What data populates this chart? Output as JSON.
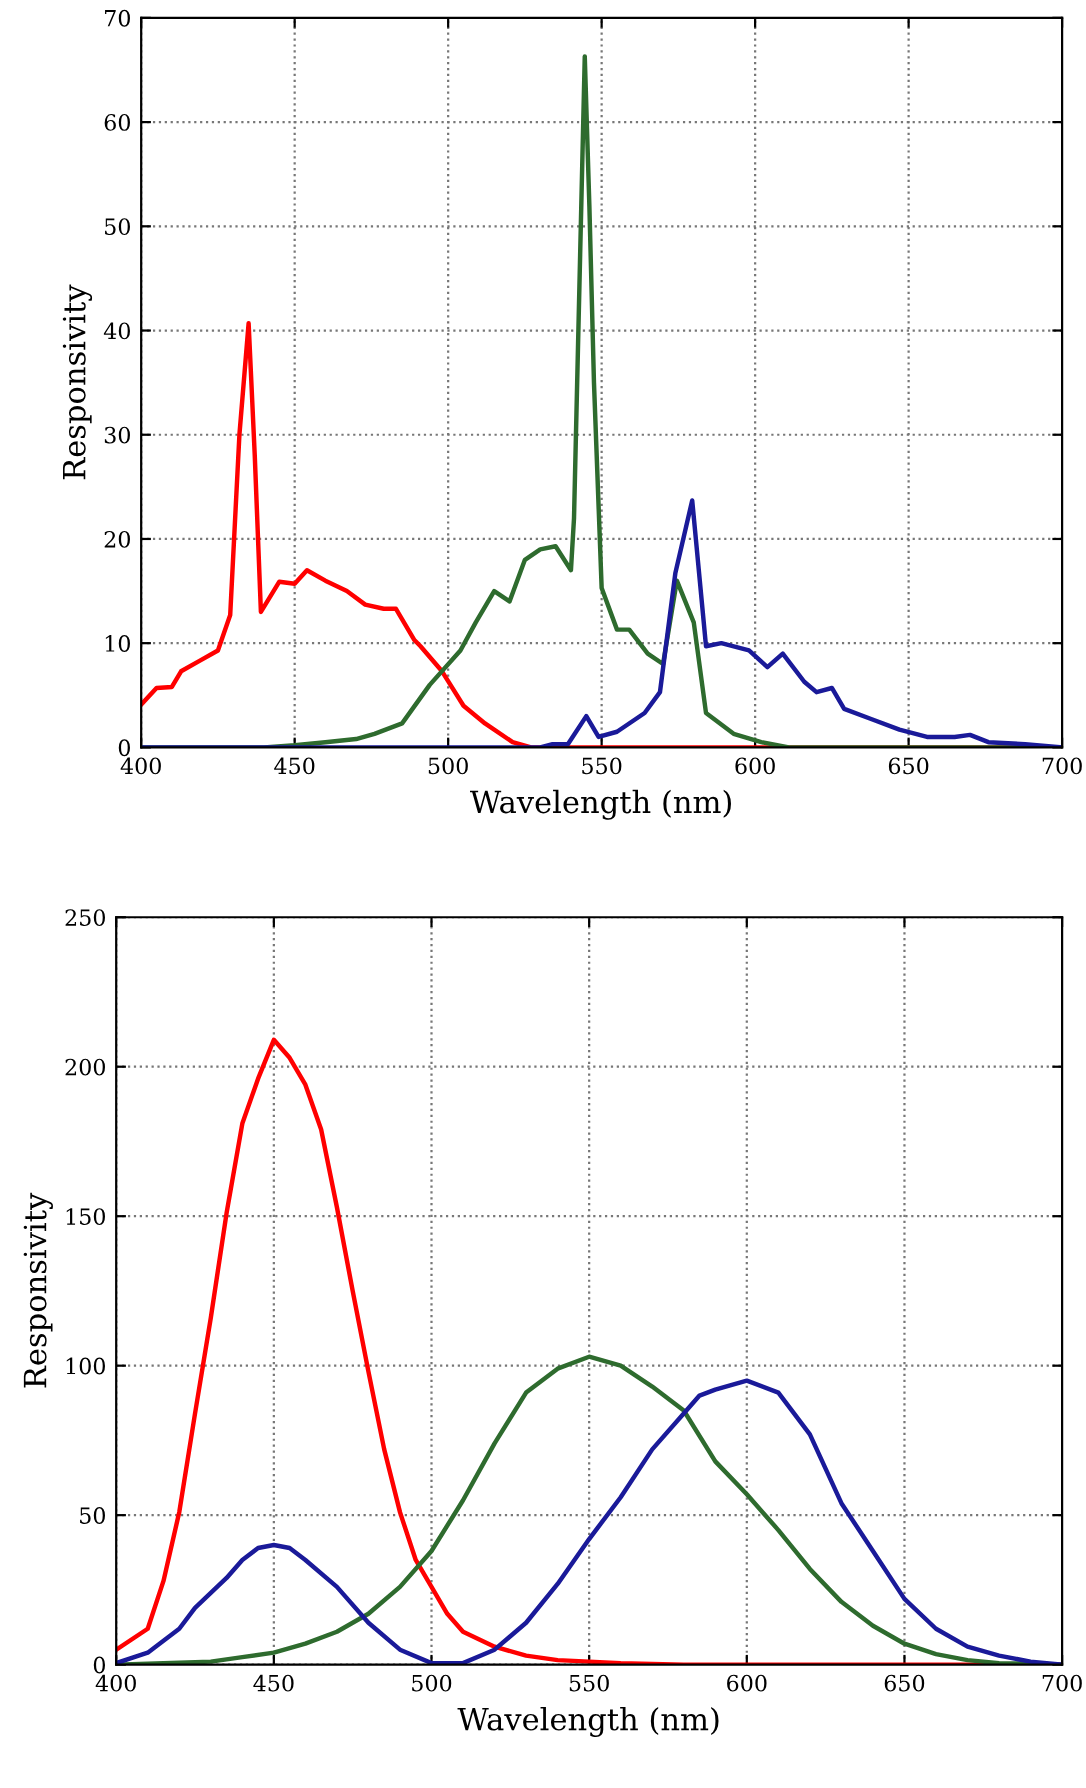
{
  "chart_data": [
    {
      "type": "line",
      "xlabel": "Wavelength (nm)",
      "ylabel": "Responsivity",
      "xlim": [
        400,
        700
      ],
      "ylim": [
        0,
        70
      ],
      "xticks": [
        400,
        450,
        500,
        550,
        600,
        650,
        700
      ],
      "yticks": [
        0,
        10,
        20,
        30,
        40,
        50,
        60,
        70
      ],
      "grid": true,
      "line_style": "solid",
      "marker": "none",
      "series": [
        {
          "color": "#ff0000",
          "x": [
            400,
            405,
            410,
            413,
            419,
            425,
            429,
            432,
            435,
            437,
            439,
            445,
            450,
            454,
            460,
            467,
            473,
            479,
            483,
            489,
            491,
            498,
            505,
            512,
            521,
            527,
            550,
            600,
            650,
            700
          ],
          "values": [
            4.1,
            5.7,
            5.8,
            7.3,
            8.3,
            9.3,
            12.7,
            30,
            40.7,
            28,
            13,
            15.9,
            15.7,
            17,
            16,
            15,
            13.7,
            13.3,
            13.3,
            10.3,
            9.7,
            7.3,
            4,
            2.3,
            0.5,
            0,
            0,
            0,
            0,
            0
          ]
        },
        {
          "color": "#2e6b2e",
          "x": [
            400,
            440,
            450,
            460,
            470,
            476,
            485,
            494,
            504,
            509,
            515,
            520,
            525,
            530,
            535,
            540,
            541,
            544.5,
            546,
            547.5,
            550,
            555,
            559,
            565,
            570,
            574.5,
            580,
            584,
            593,
            602,
            611,
            650,
            700
          ],
          "values": [
            0,
            0,
            0.2,
            0.5,
            0.8,
            1.3,
            2.3,
            6,
            9.3,
            12,
            15,
            14,
            18,
            19,
            19.3,
            17,
            22,
            66.3,
            52,
            35,
            15.3,
            11.3,
            11.3,
            9,
            8,
            16,
            12,
            3.3,
            1.3,
            0.5,
            0,
            0,
            0
          ]
        },
        {
          "color": "#1a1a99",
          "x": [
            400,
            500,
            530,
            534,
            539,
            545,
            549,
            555,
            564,
            569,
            574,
            579.5,
            584,
            589,
            598,
            604,
            609,
            616,
            620,
            625,
            629,
            638,
            647,
            656,
            665,
            670,
            676,
            688,
            700
          ],
          "values": [
            0,
            0,
            0,
            0.3,
            0.3,
            3,
            1,
            1.5,
            3.3,
            5.3,
            16.7,
            23.7,
            9.7,
            10,
            9.3,
            7.7,
            9,
            6.3,
            5.3,
            5.7,
            3.7,
            2.7,
            1.7,
            1,
            1,
            1.2,
            0.5,
            0.3,
            0
          ]
        }
      ]
    },
    {
      "type": "line",
      "xlabel": "Wavelength (nm)",
      "ylabel": "Responsivity",
      "xlim": [
        400,
        700
      ],
      "ylim": [
        0,
        250
      ],
      "xticks": [
        400,
        450,
        500,
        550,
        600,
        650,
        700
      ],
      "yticks": [
        0,
        50,
        100,
        150,
        200,
        250
      ],
      "grid": true,
      "line_style": "solid",
      "marker": "none",
      "series": [
        {
          "color": "#ff0000",
          "x": [
            400,
            410,
            415,
            420,
            425,
            430,
            435,
            440,
            445,
            450,
            455,
            460,
            465,
            470,
            475,
            480,
            485,
            490,
            495,
            500,
            505,
            510,
            520,
            530,
            540,
            550,
            560,
            580,
            700
          ],
          "values": [
            5,
            12,
            28,
            51,
            84,
            116,
            151,
            181,
            196,
            209,
            203,
            194,
            179,
            153,
            125,
            98,
            72,
            51,
            35,
            26,
            17,
            11,
            6,
            3,
            1.5,
            1,
            0.5,
            0,
            0
          ]
        },
        {
          "color": "#2e6b2e",
          "x": [
            400,
            430,
            440,
            450,
            460,
            470,
            480,
            490,
            500,
            510,
            520,
            530,
            540,
            550,
            560,
            570,
            580,
            590,
            600,
            610,
            620,
            630,
            640,
            650,
            660,
            670,
            680,
            700
          ],
          "values": [
            0,
            1,
            2.5,
            4,
            7,
            11,
            17,
            26,
            38,
            55,
            74,
            91,
            99,
            103,
            100,
            93,
            85,
            68,
            57,
            45,
            32,
            21,
            13,
            7,
            3.5,
            1.5,
            0.5,
            0
          ]
        },
        {
          "color": "#1a1a99",
          "x": [
            400,
            410,
            420,
            425,
            430,
            435,
            440,
            445,
            450,
            455,
            460,
            470,
            480,
            490,
            500,
            510,
            520,
            530,
            540,
            550,
            560,
            570,
            580,
            585,
            590,
            600,
            610,
            620,
            630,
            640,
            650,
            660,
            670,
            680,
            690,
            700
          ],
          "values": [
            0.5,
            4,
            12,
            19,
            24,
            29,
            35,
            39,
            40,
            39,
            35,
            26,
            14,
            5,
            0.5,
            0.5,
            5,
            14,
            27,
            42,
            56,
            72,
            84,
            90,
            92,
            95,
            91,
            77,
            54,
            38,
            22,
            12,
            6,
            3,
            1,
            0
          ]
        }
      ]
    }
  ]
}
